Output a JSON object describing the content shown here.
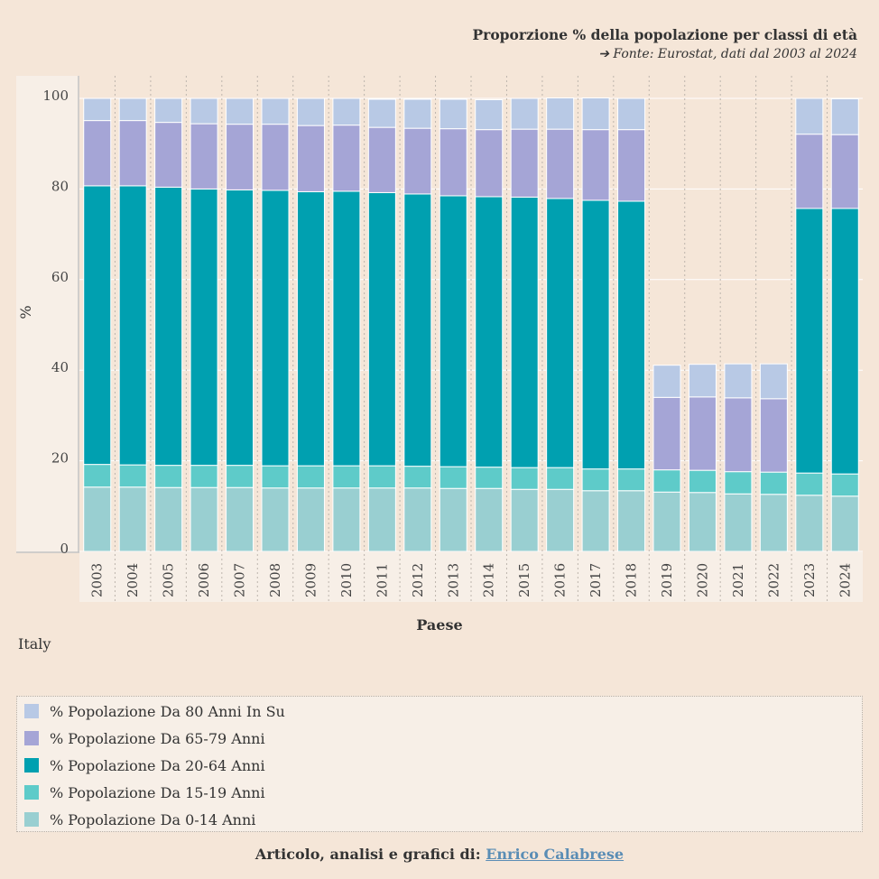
{
  "header": {
    "title": "Proporzione % della popolazione per classi di età",
    "source": "➔ Fonte:  Eurostat, dati dal 2003 al 2024"
  },
  "country_label": "Italy",
  "chart_data": {
    "type": "bar",
    "stacked": true,
    "categories": [
      "2003",
      "2004",
      "2005",
      "2006",
      "2007",
      "2008",
      "2009",
      "2010",
      "2011",
      "2012",
      "2013",
      "2014",
      "2015",
      "2016",
      "2017",
      "2018",
      "2019",
      "2020",
      "2021",
      "2022",
      "2023",
      "2024"
    ],
    "xlabel": "Paese",
    "ylabel": "%",
    "ylim": [
      0,
      100
    ],
    "yticks": [
      0,
      20,
      40,
      60,
      80,
      100
    ],
    "series": [
      {
        "name": "% Popolazione Da 0-14 Anni",
        "color": "#99cfd1",
        "values": [
          14.2,
          14.2,
          14.1,
          14.1,
          14.1,
          14.0,
          14.0,
          14.0,
          14.0,
          14.0,
          13.9,
          13.9,
          13.7,
          13.7,
          13.4,
          13.4,
          13.1,
          13.0,
          12.7,
          12.6,
          12.4,
          12.2
        ]
      },
      {
        "name": "% Popolazione Da 15-19 Anni",
        "color": "#5ecbc9",
        "values": [
          5.0,
          4.9,
          4.9,
          4.9,
          4.9,
          4.9,
          4.9,
          4.9,
          4.9,
          4.8,
          4.8,
          4.7,
          4.8,
          4.8,
          4.8,
          4.8,
          4.9,
          4.9,
          4.9,
          4.9,
          4.9,
          4.9
        ]
      },
      {
        "name": "% Popolazione Da 20-64 Anni",
        "color": "#00a0b0",
        "values": [
          61.5,
          61.6,
          61.4,
          61.0,
          60.8,
          60.8,
          60.5,
          60.6,
          60.3,
          60.1,
          59.8,
          59.7,
          59.7,
          59.4,
          59.3,
          59.1,
          0,
          0,
          0,
          0,
          58.4,
          58.6
        ]
      },
      {
        "name": "% Popolazione Da 65-79 Anni",
        "color": "#a5a5d6",
        "values": [
          14.4,
          14.4,
          14.3,
          14.4,
          14.5,
          14.6,
          14.6,
          14.6,
          14.4,
          14.5,
          14.8,
          14.8,
          15.0,
          15.3,
          15.6,
          15.8,
          16.0,
          16.2,
          16.3,
          16.2,
          16.4,
          16.3
        ]
      },
      {
        "name": "% Popolazione Da 80 Anni In Su",
        "color": "#b8c9e5",
        "values": [
          4.9,
          4.9,
          5.3,
          5.6,
          5.7,
          5.7,
          6.0,
          5.9,
          6.2,
          6.4,
          6.5,
          6.6,
          6.8,
          6.9,
          7.0,
          6.9,
          7.1,
          7.2,
          7.5,
          7.7,
          7.9,
          7.9
        ]
      }
    ]
  },
  "legend_order": [
    4,
    3,
    2,
    1,
    0
  ],
  "footer": {
    "prefix": "Articolo, analisi e grafici di:",
    "author": "Enrico Calabrese"
  }
}
